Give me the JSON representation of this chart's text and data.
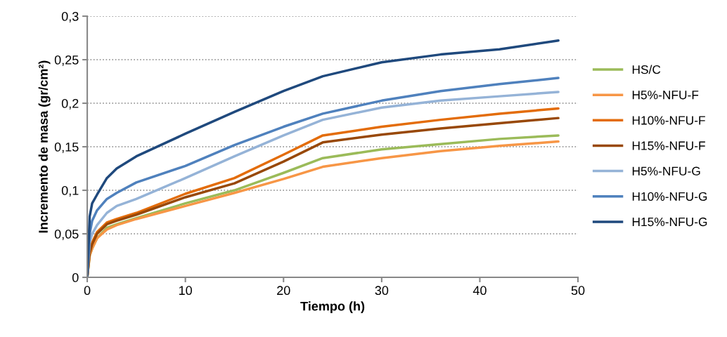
{
  "chart_data": {
    "type": "line",
    "xlabel": "Tiempo (h)",
    "ylabel": "Incremento de masa (gr/cm²)",
    "x": [
      0,
      0.25,
      0.5,
      1,
      2,
      3,
      5,
      10,
      15,
      20,
      24,
      30,
      36,
      42,
      48
    ],
    "xlim": [
      0,
      50
    ],
    "xticks": [
      0,
      10,
      20,
      30,
      40,
      50
    ],
    "ylim": [
      0,
      0.3
    ],
    "yticks": [
      {
        "value": 0,
        "label": "0"
      },
      {
        "value": 0.05,
        "label": "0,05"
      },
      {
        "value": 0.1,
        "label": "0,1"
      },
      {
        "value": 0.15,
        "label": "0,15"
      },
      {
        "value": 0.2,
        "label": "0,2"
      },
      {
        "value": 0.25,
        "label": "0,25"
      },
      {
        "value": 0.3,
        "label": "0,3"
      }
    ],
    "grid": "y",
    "legend": "right",
    "marker": "none",
    "line_style": "solid",
    "series": [
      {
        "name": "HS/C",
        "color": "#9bbb59",
        "values": [
          0,
          0.025,
          0.033,
          0.045,
          0.057,
          0.061,
          0.068,
          0.085,
          0.1,
          0.12,
          0.137,
          0.147,
          0.153,
          0.159,
          0.163
        ]
      },
      {
        "name": "H5%-NFU-F",
        "color": "#f79646",
        "values": [
          0,
          0.025,
          0.033,
          0.045,
          0.055,
          0.06,
          0.067,
          0.082,
          0.097,
          0.113,
          0.127,
          0.137,
          0.145,
          0.151,
          0.156
        ]
      },
      {
        "name": "H10%-NFU-F",
        "color": "#e36c09",
        "values": [
          0,
          0.03,
          0.04,
          0.052,
          0.063,
          0.067,
          0.074,
          0.096,
          0.114,
          0.141,
          0.163,
          0.173,
          0.181,
          0.188,
          0.194
        ]
      },
      {
        "name": "H15%-NFU-F",
        "color": "#984807",
        "values": [
          0,
          0.028,
          0.038,
          0.05,
          0.061,
          0.065,
          0.072,
          0.092,
          0.108,
          0.133,
          0.155,
          0.164,
          0.171,
          0.177,
          0.183
        ]
      },
      {
        "name": "H5%-NFU-G",
        "color": "#95b3d7",
        "values": [
          0,
          0.04,
          0.05,
          0.06,
          0.074,
          0.082,
          0.09,
          0.114,
          0.139,
          0.163,
          0.181,
          0.195,
          0.203,
          0.208,
          0.213
        ]
      },
      {
        "name": "H10%-NFU-G",
        "color": "#4f81bd",
        "values": [
          0,
          0.05,
          0.065,
          0.077,
          0.09,
          0.097,
          0.109,
          0.128,
          0.152,
          0.173,
          0.188,
          0.203,
          0.214,
          0.222,
          0.229
        ]
      },
      {
        "name": "H15%-NFU-G",
        "color": "#1f497d",
        "values": [
          0,
          0.07,
          0.085,
          0.095,
          0.114,
          0.125,
          0.139,
          0.165,
          0.19,
          0.214,
          0.231,
          0.247,
          0.256,
          0.262,
          0.272
        ]
      }
    ]
  }
}
